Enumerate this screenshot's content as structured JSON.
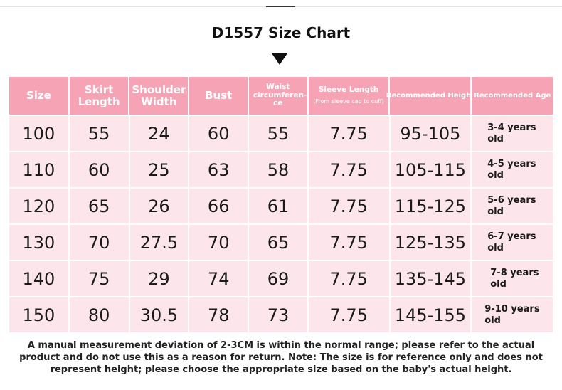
{
  "title": "D1557 Size Chart",
  "headers": [
    {
      "label": "Size",
      "sub": ""
    },
    {
      "label": "Skirt Length",
      "sub": ""
    },
    {
      "label": "Shoulder Width",
      "sub": ""
    },
    {
      "label": "Bust",
      "sub": ""
    },
    {
      "label": "Waist circumferen-ce",
      "sub": ""
    },
    {
      "label": "Sleeve Length",
      "sub": "(From sleeve cap to cuff)"
    },
    {
      "label": "Recommended Height",
      "sub": ""
    },
    {
      "label": "Recommended Age",
      "sub": ""
    }
  ],
  "rows": [
    [
      "100",
      "55",
      "24",
      "60",
      "55",
      "7.75",
      "95-105",
      "3-4 years old"
    ],
    [
      "110",
      "60",
      "25",
      "63",
      "58",
      "7.75",
      "105-115",
      "4-5 years old"
    ],
    [
      "120",
      "65",
      "26",
      "66",
      "61",
      "7.75",
      "115-125",
      "5-6 years old"
    ],
    [
      "130",
      "70",
      "27.5",
      "70",
      "65",
      "7.75",
      "125-135",
      "6-7 years old"
    ],
    [
      "140",
      "75",
      "29",
      "74",
      "69",
      "7.75",
      "135-145",
      "7-8 years old"
    ],
    [
      "150",
      "80",
      "30.5",
      "78",
      "73",
      "7.75",
      "145-155",
      "9-10 years old"
    ]
  ],
  "note": "A manual measurement deviation of 2-3CM is within the normal range; please refer to the actual product and do not use this as a reason for return. Note: The size is for reference only and does not represent height; please choose the appropriate size based on the baby's actual height.",
  "colors": {
    "header_bg": "#f5a3b5",
    "cell_bg": "#fce6ec"
  }
}
